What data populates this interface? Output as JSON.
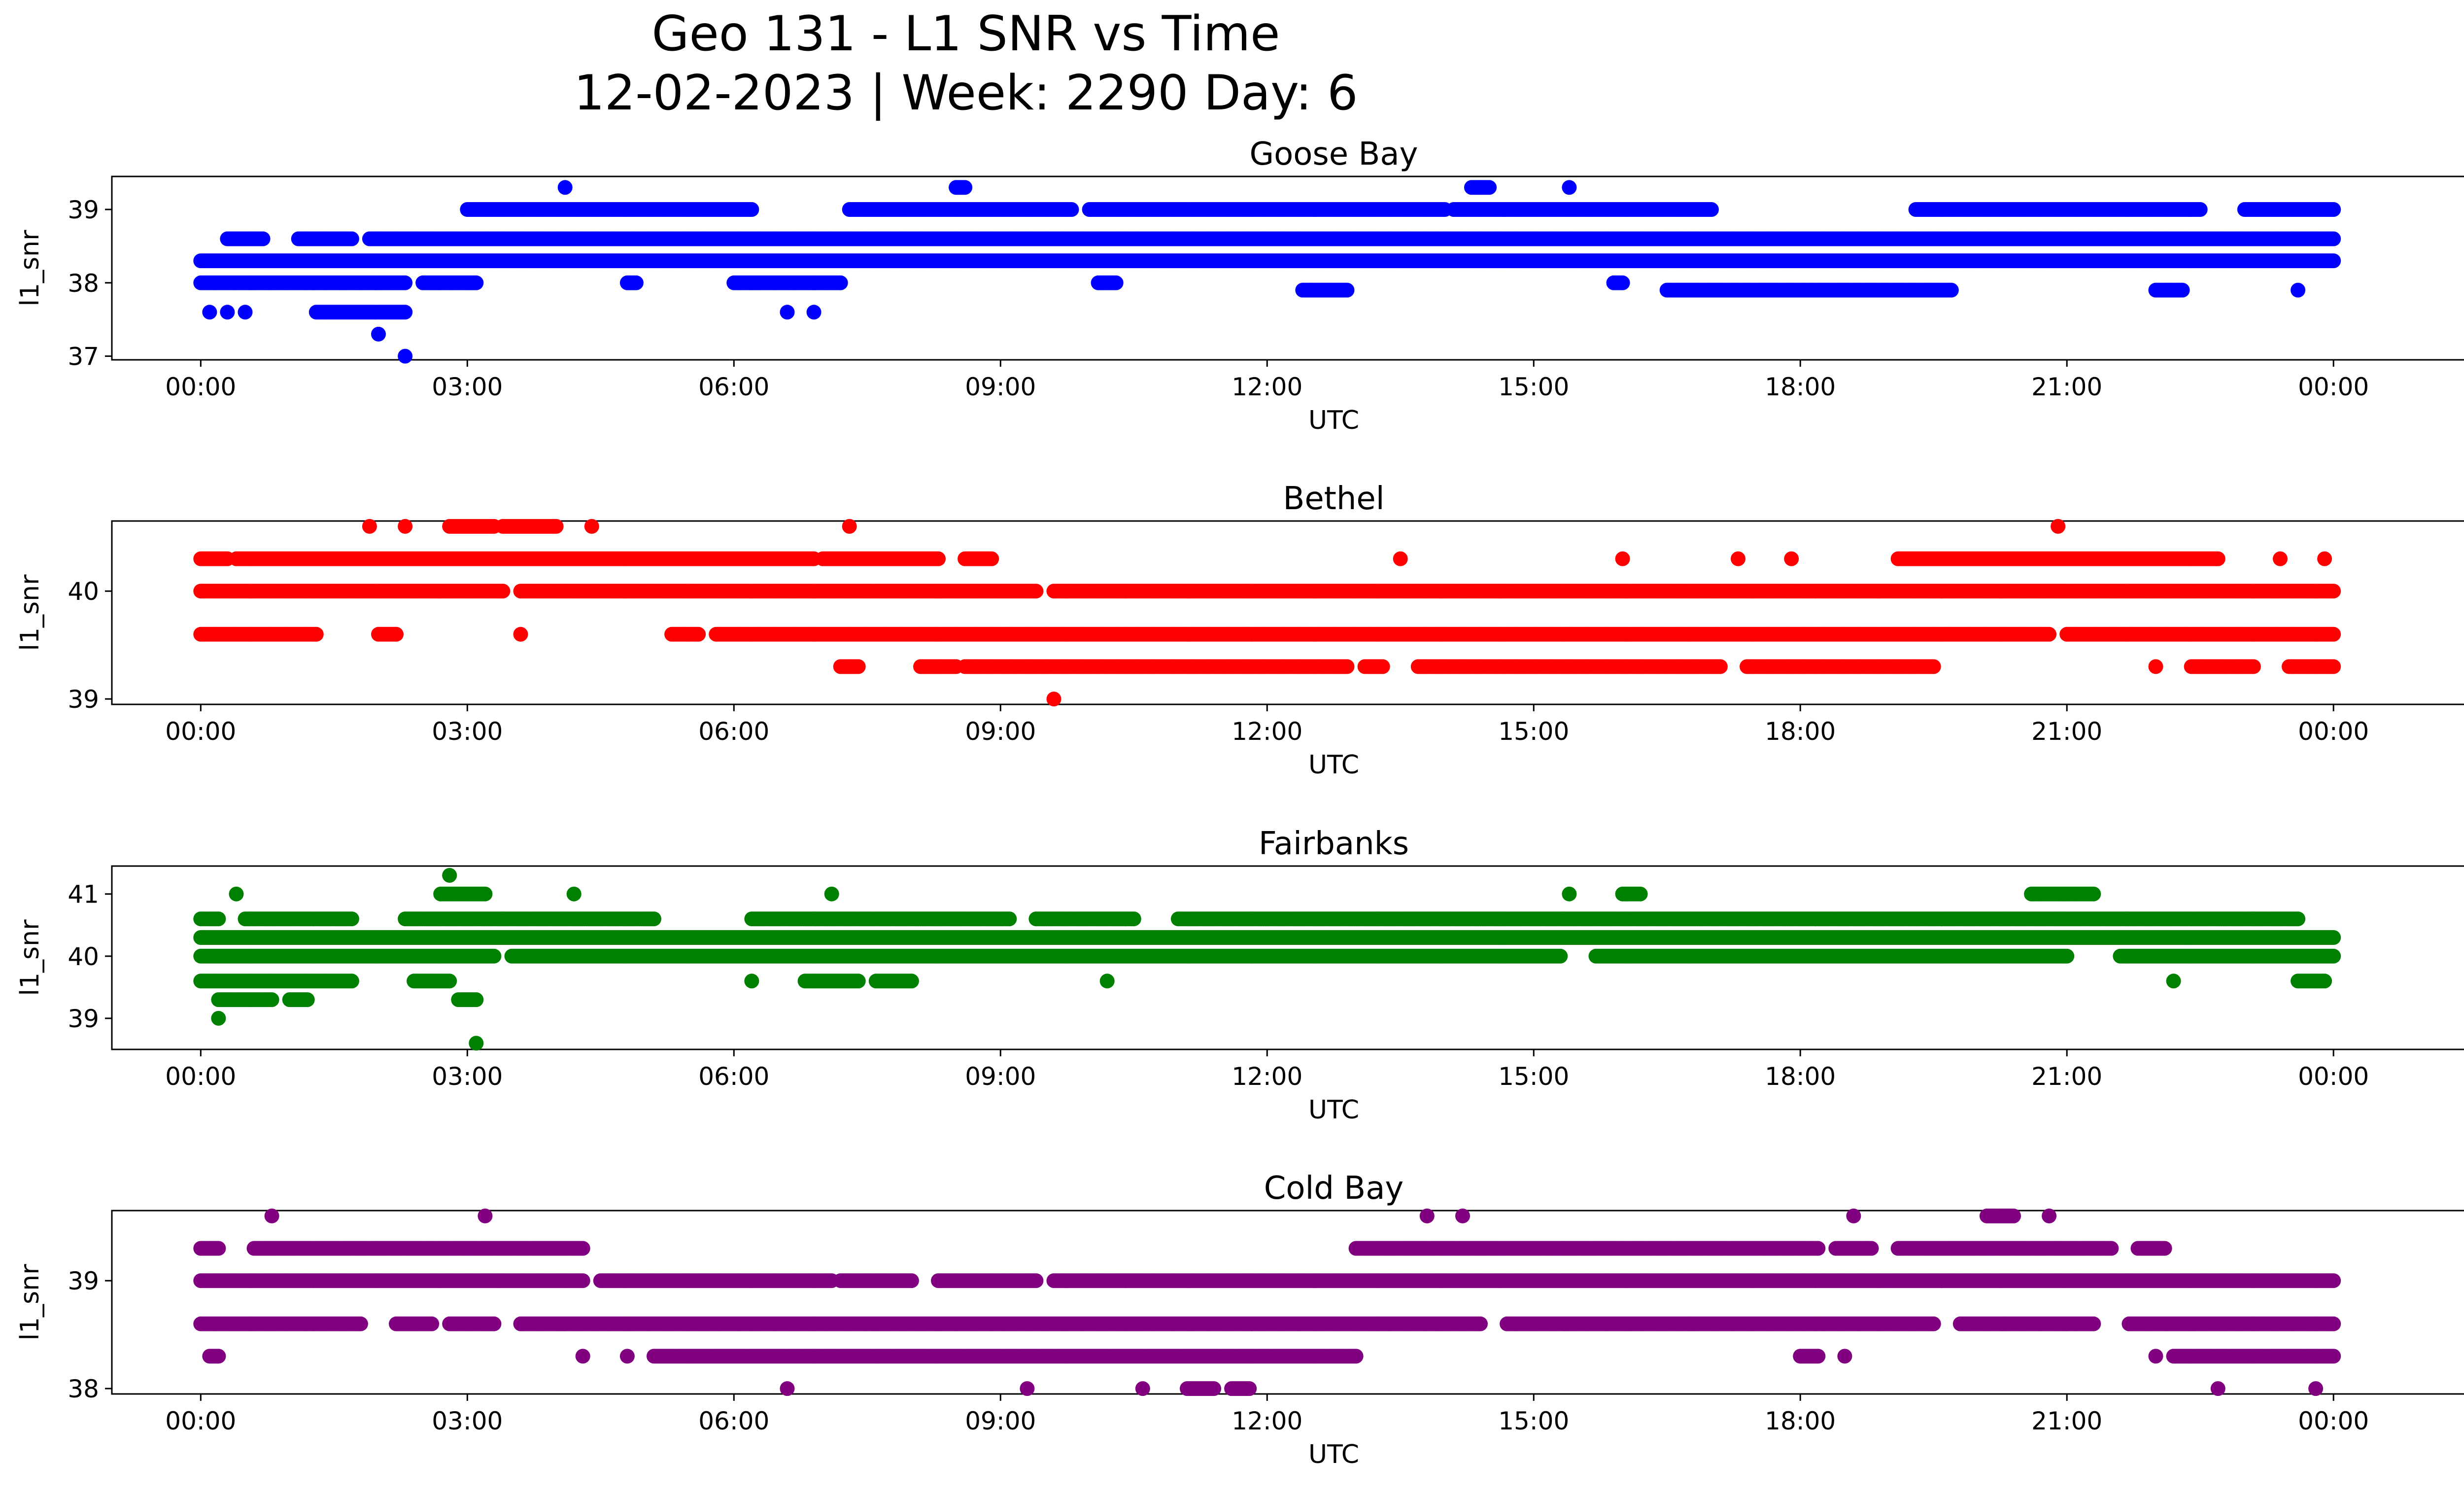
{
  "figure": {
    "title_line1": "Geo 131 - L1 SNR vs Time",
    "title_line2": "12-02-2023 | Week: 2290 Day: 6"
  },
  "chart_data": [
    {
      "type": "scatter",
      "title": "Goose Bay",
      "xlabel": "UTC",
      "ylabel": "l1_snr",
      "color": "#0000ff",
      "xlim": [
        "23:00",
        "26:30"
      ],
      "ylim": [
        36.95,
        39.45
      ],
      "xticks": [
        "00:00",
        "03:00",
        "06:00",
        "09:00",
        "12:00",
        "15:00",
        "18:00",
        "21:00",
        "00:00"
      ],
      "yticks": [
        37,
        38,
        39
      ],
      "series": [
        {
          "y": 38.3,
          "x": [
            [
              0.0,
              24.0
            ]
          ]
        },
        {
          "y": 38.0,
          "x": [
            [
              0.0,
              2.3
            ],
            [
              2.5,
              3.1
            ],
            [
              4.8,
              4.9
            ],
            [
              6.0,
              7.2
            ],
            [
              10.1,
              10.3
            ],
            [
              15.9,
              16.0
            ]
          ]
        },
        {
          "y": 38.6,
          "x": [
            [
              0.3,
              0.7
            ],
            [
              1.1,
              1.7
            ],
            [
              1.9,
              24.0
            ]
          ]
        },
        {
          "y": 39.0,
          "x": [
            [
              3.0,
              6.2
            ],
            [
              7.3,
              9.8
            ],
            [
              10.0,
              14.0
            ],
            [
              14.1,
              17.0
            ],
            [
              19.3,
              22.5
            ],
            [
              23.0,
              24.0
            ]
          ]
        },
        {
          "y": 37.6,
          "x": [
            [
              0.1,
              0.1
            ],
            [
              0.3,
              0.3
            ],
            [
              0.5,
              0.5
            ],
            [
              1.3,
              2.3
            ],
            [
              6.6,
              6.6
            ],
            [
              6.9,
              6.9
            ]
          ]
        },
        {
          "y": 37.3,
          "x": [
            [
              2.0,
              2.0
            ]
          ]
        },
        {
          "y": 37.0,
          "x": [
            [
              2.3,
              2.3
            ]
          ]
        },
        {
          "y": 39.3,
          "x": [
            [
              4.1,
              4.1
            ],
            [
              8.5,
              8.6
            ],
            [
              14.3,
              14.5
            ],
            [
              15.4,
              15.4
            ]
          ]
        },
        {
          "y": 37.9,
          "x": [
            [
              12.4,
              12.9
            ],
            [
              16.5,
              19.7
            ],
            [
              22.0,
              22.3
            ],
            [
              23.6,
              23.6
            ]
          ]
        }
      ]
    },
    {
      "type": "scatter",
      "title": "Bethel",
      "xlabel": "UTC",
      "ylabel": "l1_snr",
      "color": "#ff0000",
      "xlim": [
        "23:00",
        "26:30"
      ],
      "ylim": [
        38.95,
        40.65
      ],
      "xticks": [
        "00:00",
        "03:00",
        "06:00",
        "09:00",
        "12:00",
        "15:00",
        "18:00",
        "21:00",
        "00:00"
      ],
      "yticks": [
        39,
        40
      ],
      "series": [
        {
          "y": 40.0,
          "x": [
            [
              0.0,
              3.4
            ],
            [
              3.6,
              9.4
            ],
            [
              9.6,
              24.0
            ]
          ]
        },
        {
          "y": 39.6,
          "x": [
            [
              0.0,
              1.3
            ],
            [
              2.0,
              2.2
            ],
            [
              3.6,
              3.6
            ],
            [
              5.3,
              5.6
            ],
            [
              5.8,
              20.8
            ],
            [
              21.0,
              24.0
            ]
          ]
        },
        {
          "y": 40.3,
          "x": [
            [
              0.0,
              0.3
            ],
            [
              0.4,
              6.9
            ],
            [
              7.0,
              8.3
            ],
            [
              8.6,
              8.9
            ],
            [
              13.5,
              13.5
            ],
            [
              16.0,
              16.0
            ],
            [
              17.3,
              17.3
            ],
            [
              17.9,
              17.9
            ],
            [
              19.1,
              22.7
            ],
            [
              23.4,
              23.4
            ],
            [
              23.9,
              23.9
            ]
          ]
        },
        {
          "y": 40.6,
          "x": [
            [
              1.9,
              1.9
            ],
            [
              2.3,
              2.3
            ],
            [
              2.8,
              3.3
            ],
            [
              3.4,
              4.0
            ],
            [
              4.4,
              4.4
            ],
            [
              7.3,
              7.3
            ],
            [
              20.9,
              20.9
            ]
          ]
        },
        {
          "y": 39.3,
          "x": [
            [
              7.2,
              7.4
            ],
            [
              8.1,
              8.5
            ],
            [
              8.6,
              12.9
            ],
            [
              13.1,
              13.3
            ],
            [
              13.7,
              17.1
            ],
            [
              17.4,
              19.5
            ],
            [
              22.0,
              22.0
            ],
            [
              22.4,
              23.1
            ],
            [
              23.5,
              24.0
            ]
          ]
        },
        {
          "y": 39.0,
          "x": [
            [
              9.6,
              9.6
            ]
          ]
        }
      ]
    },
    {
      "type": "scatter",
      "title": "Fairbanks",
      "xlabel": "UTC",
      "ylabel": "l1_snr",
      "color": "#008000",
      "xlim": [
        "23:00",
        "26:30"
      ],
      "ylim": [
        38.5,
        41.45
      ],
      "xticks": [
        "00:00",
        "03:00",
        "06:00",
        "09:00",
        "12:00",
        "15:00",
        "18:00",
        "21:00",
        "00:00"
      ],
      "yticks": [
        39,
        40,
        41
      ],
      "series": [
        {
          "y": 40.3,
          "x": [
            [
              0.0,
              24.0
            ]
          ]
        },
        {
          "y": 40.0,
          "x": [
            [
              0.0,
              3.3
            ],
            [
              3.5,
              15.3
            ],
            [
              15.7,
              21.0
            ],
            [
              21.6,
              24.0
            ]
          ]
        },
        {
          "y": 40.6,
          "x": [
            [
              0.0,
              0.2
            ],
            [
              0.5,
              1.7
            ],
            [
              2.3,
              5.1
            ],
            [
              6.2,
              9.1
            ],
            [
              9.4,
              10.5
            ],
            [
              11.0,
              23.6
            ]
          ]
        },
        {
          "y": 39.6,
          "x": [
            [
              0.0,
              1.7
            ],
            [
              2.4,
              2.8
            ],
            [
              6.2,
              6.2
            ],
            [
              6.8,
              7.4
            ],
            [
              7.6,
              8.0
            ],
            [
              10.2,
              10.2
            ],
            [
              22.2,
              22.2
            ],
            [
              23.6,
              23.9
            ]
          ]
        },
        {
          "y": 41.0,
          "x": [
            [
              0.4,
              0.4
            ],
            [
              2.7,
              3.2
            ],
            [
              4.2,
              4.2
            ],
            [
              7.1,
              7.1
            ],
            [
              15.4,
              15.4
            ],
            [
              16.0,
              16.2
            ],
            [
              20.6,
              21.3
            ]
          ]
        },
        {
          "y": 39.3,
          "x": [
            [
              0.2,
              0.8
            ],
            [
              1.0,
              1.2
            ],
            [
              2.9,
              3.1
            ]
          ]
        },
        {
          "y": 39.0,
          "x": [
            [
              0.2,
              0.2
            ]
          ]
        },
        {
          "y": 41.3,
          "x": [
            [
              2.8,
              2.8
            ]
          ]
        },
        {
          "y": 38.6,
          "x": [
            [
              3.1,
              3.1
            ]
          ]
        }
      ]
    },
    {
      "type": "scatter",
      "title": "Cold Bay",
      "xlabel": "UTC",
      "ylabel": "l1_snr",
      "color": "#800080",
      "xlim": [
        "23:00",
        "26:30"
      ],
      "ylim": [
        37.95,
        39.65
      ],
      "xticks": [
        "00:00",
        "03:00",
        "06:00",
        "09:00",
        "12:00",
        "15:00",
        "18:00",
        "21:00",
        "00:00"
      ],
      "yticks": [
        38,
        39
      ],
      "series": [
        {
          "y": 39.0,
          "x": [
            [
              0.0,
              4.3
            ],
            [
              4.5,
              7.1
            ],
            [
              7.2,
              8.0
            ],
            [
              8.3,
              9.4
            ],
            [
              9.6,
              24.0
            ]
          ]
        },
        {
          "y": 38.6,
          "x": [
            [
              0.0,
              1.8
            ],
            [
              2.2,
              2.6
            ],
            [
              2.8,
              3.3
            ],
            [
              3.6,
              14.4
            ],
            [
              14.7,
              19.5
            ],
            [
              19.8,
              21.3
            ],
            [
              21.7,
              24.0
            ]
          ]
        },
        {
          "y": 39.3,
          "x": [
            [
              0.0,
              0.2
            ],
            [
              0.6,
              4.3
            ],
            [
              13.0,
              18.2
            ],
            [
              18.4,
              18.8
            ],
            [
              19.1,
              21.5
            ],
            [
              21.8,
              22.1
            ]
          ]
        },
        {
          "y": 38.3,
          "x": [
            [
              0.1,
              0.2
            ],
            [
              4.3,
              4.3
            ],
            [
              4.8,
              4.8
            ],
            [
              5.1,
              13.0
            ],
            [
              18.0,
              18.2
            ],
            [
              18.5,
              18.5
            ],
            [
              22.0,
              22.0
            ],
            [
              22.2,
              24.0
            ]
          ]
        },
        {
          "y": 39.6,
          "x": [
            [
              0.8,
              0.8
            ],
            [
              3.2,
              3.2
            ],
            [
              13.8,
              13.8
            ],
            [
              14.2,
              14.2
            ],
            [
              18.6,
              18.6
            ],
            [
              20.1,
              20.4
            ],
            [
              20.8,
              20.8
            ]
          ]
        },
        {
          "y": 38.0,
          "x": [
            [
              6.6,
              6.6
            ],
            [
              9.3,
              9.3
            ],
            [
              10.6,
              10.6
            ],
            [
              11.1,
              11.4
            ],
            [
              11.6,
              11.8
            ],
            [
              22.7,
              22.7
            ],
            [
              23.8,
              23.8
            ]
          ]
        }
      ]
    }
  ]
}
